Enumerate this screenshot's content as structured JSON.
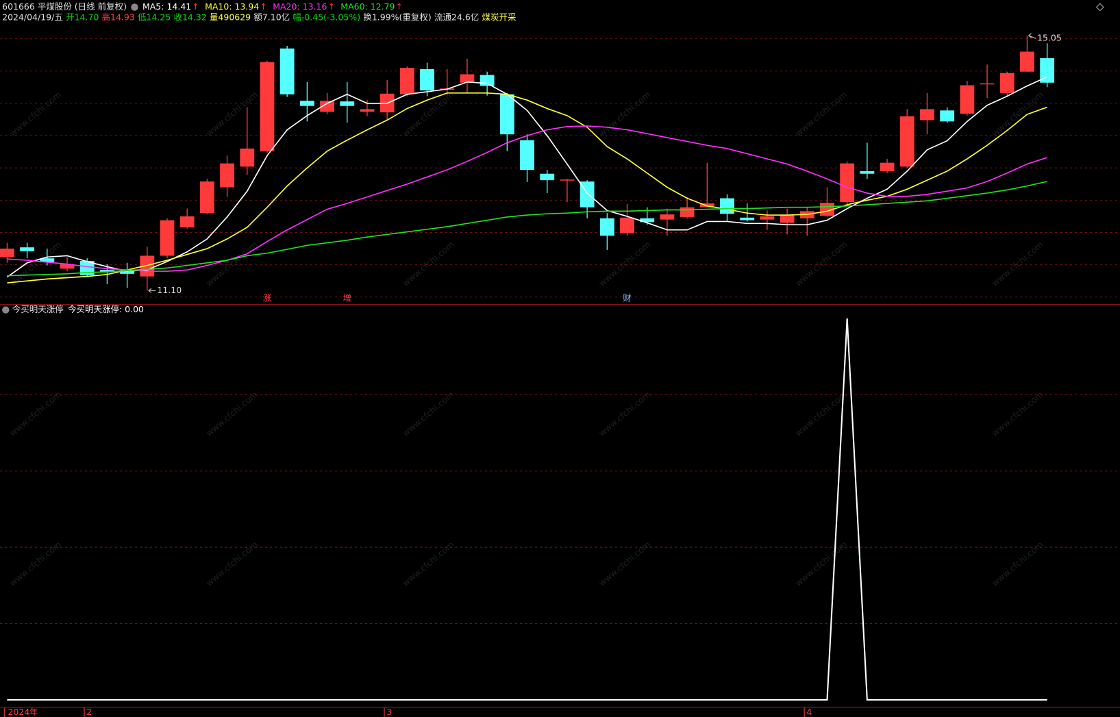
{
  "header": {
    "symbol": "601666 平煤股份 (日线 前复权)",
    "ma_arrow": "↑",
    "ma_arrow_color": "#ff3030",
    "quote": [
      {
        "text": "2024/04/19/五",
        "color": "#e0e0e0"
      },
      {
        "text": "开14.70",
        "color": "#00dd00"
      },
      {
        "text": "高14.93",
        "color": "#ff4040"
      },
      {
        "text": "低14.25",
        "color": "#00dd00"
      },
      {
        "text": "收14.32",
        "color": "#00dd00"
      },
      {
        "text": "量490629",
        "color": "#ffff40"
      },
      {
        "text": "额7.10亿",
        "color": "#e0e0e0"
      },
      {
        "text": "幅-0.45(-3.05%)",
        "color": "#00dd00"
      },
      {
        "text": "换1.99%(重复权)",
        "color": "#e0e0e0"
      },
      {
        "text": "流通24.6亿",
        "color": "#e0e0e0"
      },
      {
        "text": "煤炭开采",
        "color": "#ffff40"
      }
    ]
  },
  "watermark": "www.cfchi.com",
  "chart_data": [
    {
      "type": "candlestick",
      "up_color": "#ff3a3a",
      "down_color": "#54ffff",
      "ylim": [
        10.9,
        15.6
      ],
      "yticks": [
        11,
        11.5,
        12,
        12.5,
        13,
        13.5,
        14,
        14.5,
        15
      ],
      "grid": true,
      "categories": [
        "2024年",
        null,
        null,
        null,
        "2",
        null,
        null,
        null,
        null,
        null,
        null,
        null,
        null,
        null,
        null,
        null,
        null,
        null,
        null,
        "3",
        null,
        null,
        null,
        null,
        null,
        null,
        null,
        null,
        null,
        null,
        null,
        null,
        null,
        null,
        null,
        null,
        null,
        null,
        null,
        null,
        "4",
        null,
        null,
        null,
        null,
        null,
        null,
        null,
        null,
        null,
        null,
        null,
        null
      ],
      "category_color": "#ff4040",
      "open": [
        11.62,
        11.77,
        11.6,
        11.44,
        11.56,
        11.42,
        11.4,
        11.32,
        11.64,
        12.08,
        12.3,
        12.7,
        13.02,
        13.26,
        14.85,
        14.04,
        13.87,
        14.03,
        13.87,
        13.86,
        14.14,
        14.53,
        14.21,
        14.32,
        14.44,
        14.14,
        13.43,
        12.91,
        12.81,
        12.79,
        12.22,
        11.99,
        12.22,
        12.2,
        12.24,
        12.39,
        12.53,
        12.23,
        12.2,
        12.15,
        12.22,
        12.26,
        12.47,
        12.95,
        12.95,
        13.02,
        13.74,
        13.89,
        13.84,
        14.3,
        14.16,
        14.49,
        14.7
      ],
      "high": [
        11.84,
        11.84,
        11.75,
        11.62,
        11.6,
        11.51,
        11.53,
        11.78,
        12.22,
        12.37,
        12.83,
        13.19,
        13.94,
        14.66,
        14.89,
        14.33,
        14.16,
        14.33,
        14.05,
        14.36,
        14.57,
        14.63,
        14.53,
        14.69,
        14.49,
        14.16,
        13.52,
        12.97,
        12.83,
        12.81,
        12.3,
        12.44,
        12.39,
        12.37,
        12.55,
        13.08,
        12.59,
        12.45,
        12.34,
        12.37,
        12.39,
        12.7,
        13.1,
        13.39,
        13.14,
        13.91,
        14.16,
        13.94,
        14.35,
        14.6,
        14.49,
        15.05,
        14.93
      ],
      "low": [
        11.53,
        11.6,
        11.49,
        11.4,
        11.31,
        11.2,
        11.14,
        11.1,
        11.6,
        12.06,
        12.28,
        12.55,
        12.89,
        13.23,
        14.1,
        13.72,
        13.83,
        13.7,
        13.8,
        13.74,
        14.11,
        14.11,
        14.13,
        14.16,
        14.12,
        13.26,
        12.78,
        12.61,
        12.47,
        12.22,
        11.73,
        11.95,
        12.12,
        11.95,
        12.22,
        12.39,
        12.17,
        12.17,
        12.04,
        11.97,
        11.95,
        12.24,
        12.44,
        12.83,
        12.92,
        13.0,
        13.52,
        13.7,
        13.81,
        14.08,
        14.12,
        14.48,
        14.25
      ],
      "close": [
        11.75,
        11.71,
        11.54,
        11.51,
        11.34,
        11.39,
        11.36,
        11.64,
        12.19,
        12.25,
        12.79,
        13.07,
        13.3,
        14.64,
        14.14,
        13.96,
        14.04,
        13.96,
        13.91,
        14.15,
        14.55,
        14.2,
        14.23,
        14.45,
        14.27,
        13.52,
        12.97,
        12.81,
        12.82,
        12.39,
        11.95,
        12.23,
        12.16,
        12.28,
        12.39,
        12.45,
        12.29,
        12.19,
        12.25,
        12.27,
        12.33,
        12.46,
        13.07,
        12.91,
        13.08,
        13.8,
        13.91,
        13.72,
        14.28,
        14.31,
        14.47,
        14.8,
        14.32
      ],
      "series": [
        {
          "name": "MA5: 14.41",
          "color": "#ffffff",
          "values": [
            11.31,
            11.53,
            11.62,
            11.64,
            11.55,
            11.47,
            11.4,
            11.42,
            11.55,
            11.7,
            11.9,
            12.24,
            12.64,
            13.19,
            13.59,
            13.81,
            14.0,
            14.14,
            14.0,
            14.0,
            14.14,
            14.18,
            14.22,
            14.33,
            14.31,
            14.14,
            13.89,
            13.5,
            13.06,
            12.61,
            12.34,
            12.25,
            12.15,
            12.04,
            12.04,
            12.17,
            12.17,
            12.14,
            12.14,
            12.12,
            12.12,
            12.19,
            12.37,
            12.53,
            12.67,
            12.95,
            13.28,
            13.42,
            13.72,
            13.97,
            14.11,
            14.27,
            14.41
          ]
        },
        {
          "name": "MA10: 13.94",
          "color": "#ffff30",
          "values": [
            11.22,
            11.25,
            11.28,
            11.3,
            11.32,
            11.35,
            11.42,
            11.49,
            11.57,
            11.66,
            11.75,
            11.9,
            12.08,
            12.39,
            12.72,
            13.0,
            13.26,
            13.43,
            13.59,
            13.74,
            13.92,
            14.05,
            14.16,
            14.16,
            14.16,
            14.14,
            14.05,
            13.92,
            13.81,
            13.63,
            13.33,
            13.14,
            12.92,
            12.7,
            12.53,
            12.41,
            12.36,
            12.3,
            12.27,
            12.27,
            12.28,
            12.33,
            12.43,
            12.5,
            12.56,
            12.67,
            12.81,
            12.95,
            13.14,
            13.35,
            13.58,
            13.83,
            13.94
          ]
        },
        {
          "name": "MA20: 13.16",
          "color": "#ff30ff",
          "values": [
            11.59,
            11.57,
            11.54,
            11.51,
            11.47,
            11.44,
            11.42,
            11.4,
            11.4,
            11.42,
            11.49,
            11.57,
            11.67,
            11.86,
            12.04,
            12.2,
            12.36,
            12.45,
            12.55,
            12.65,
            12.75,
            12.86,
            12.97,
            13.1,
            13.24,
            13.39,
            13.5,
            13.59,
            13.64,
            13.65,
            13.63,
            13.59,
            13.53,
            13.47,
            13.41,
            13.35,
            13.3,
            13.22,
            13.14,
            13.06,
            12.95,
            12.83,
            12.7,
            12.61,
            12.56,
            12.56,
            12.59,
            12.64,
            12.69,
            12.79,
            12.92,
            13.06,
            13.16
          ]
        },
        {
          "name": "MA60: 12.79",
          "color": "#20e020",
          "values": [
            11.33,
            11.34,
            11.35,
            11.36,
            11.38,
            11.39,
            11.41,
            11.43,
            11.45,
            11.49,
            11.53,
            11.57,
            11.64,
            11.68,
            11.74,
            11.8,
            11.84,
            11.88,
            11.93,
            11.97,
            12.01,
            12.05,
            12.09,
            12.14,
            12.19,
            12.24,
            12.27,
            12.29,
            12.3,
            12.32,
            12.33,
            12.33,
            12.34,
            12.35,
            12.35,
            12.36,
            12.37,
            12.37,
            12.38,
            12.39,
            12.39,
            12.4,
            12.41,
            12.43,
            12.45,
            12.47,
            12.49,
            12.53,
            12.57,
            12.61,
            12.66,
            12.72,
            12.79
          ]
        }
      ],
      "annotations": [
        {
          "label": "15.05",
          "value": 15.05
        },
        {
          "label": "11.10",
          "value": 11.1
        }
      ],
      "events": [
        null,
        null,
        null,
        null,
        null,
        null,
        null,
        null,
        null,
        null,
        null,
        null,
        null,
        {
          "label": "涨",
          "color": "#ff4040"
        },
        null,
        null,
        null,
        {
          "label": "增",
          "color": "#ff4040"
        },
        null,
        null,
        null,
        null,
        null,
        null,
        null,
        null,
        null,
        null,
        null,
        null,
        null,
        {
          "label": "财",
          "color": "#80c0ff"
        },
        null,
        null,
        null,
        null,
        null,
        null,
        null,
        null,
        null,
        null,
        null,
        null,
        null,
        null,
        null,
        null,
        null,
        null,
        null,
        null,
        null
      ]
    },
    {
      "type": "line",
      "title": "今买明天涨停",
      "legend": "今买明天涨停: 0.00",
      "color": "#ffffff",
      "ylim": [
        0,
        1
      ],
      "yticks": [
        0.2,
        0.4,
        0.6,
        0.8
      ],
      "grid": true,
      "values": [
        0,
        0,
        0,
        0,
        0,
        0,
        0,
        0,
        0,
        0,
        0,
        0,
        0,
        0,
        0,
        0,
        0,
        0,
        0,
        0,
        0,
        0,
        0,
        0,
        0,
        0,
        0,
        0,
        0,
        0,
        0,
        0,
        0,
        0,
        0,
        0,
        0,
        0,
        0,
        0,
        0,
        0,
        1,
        0,
        0,
        0,
        0,
        0,
        0,
        0,
        0,
        0,
        0
      ]
    }
  ]
}
